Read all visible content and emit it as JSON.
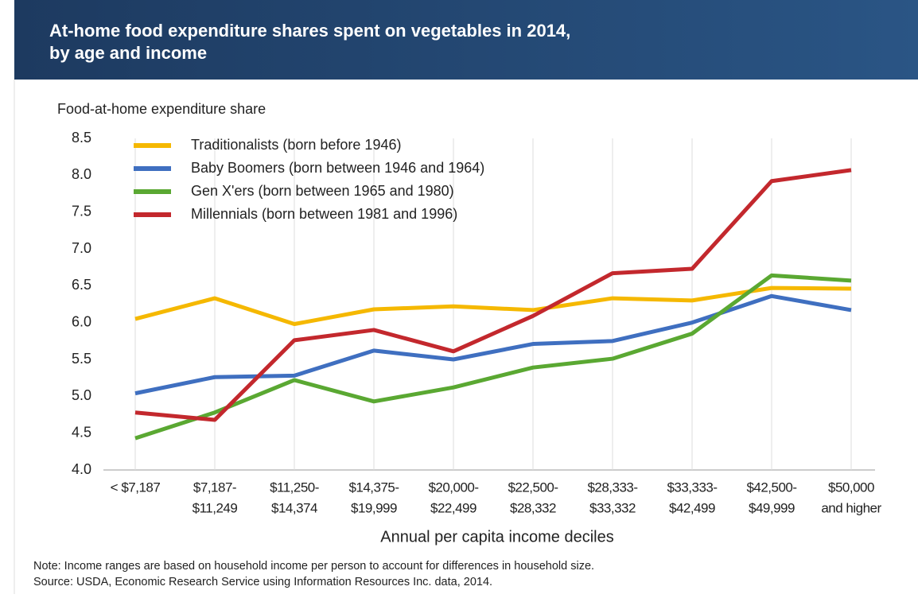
{
  "chart_data": {
    "type": "line",
    "title": [
      "At-home food expenditure shares spent on vegetables in 2014,",
      "by age and income"
    ],
    "y_axis_label": "Food-at-home expenditure share",
    "x_axis_label": "Annual per capita income deciles",
    "notes": [
      "Note: Income ranges are based on household income per person to account for differences in household size.",
      "Source: USDA, Economic Research Service using Information Resources Inc. data, 2014."
    ],
    "categories": [
      [
        "< $7,187"
      ],
      [
        "$7,187-",
        "$11,249"
      ],
      [
        "$11,250-",
        "$14,374"
      ],
      [
        "$14,375-",
        "$19,999"
      ],
      [
        "$20,000-",
        "$22,499"
      ],
      [
        "$22,500-",
        "$28,332"
      ],
      [
        "$28,333-",
        "$33,332"
      ],
      [
        "$33,333-",
        "$42,499"
      ],
      [
        "$42,500-",
        "$49,999"
      ],
      [
        "$50,000",
        "and higher"
      ]
    ],
    "series": [
      {
        "name": "Traditionalists (born before 1946)",
        "color": "#f5b800",
        "values": [
          6.05,
          6.33,
          5.98,
          6.18,
          6.22,
          6.17,
          6.33,
          6.3,
          6.47,
          6.46
        ]
      },
      {
        "name": "Baby Boomers (born between 1946 and 1964)",
        "color": "#3f6fc0",
        "values": [
          5.04,
          5.26,
          5.28,
          5.62,
          5.5,
          5.71,
          5.75,
          6.0,
          6.36,
          6.17
        ]
      },
      {
        "name": "Gen X'ers (born between 1965 and 1980)",
        "color": "#5aa832",
        "values": [
          4.43,
          4.78,
          5.22,
          4.93,
          5.12,
          5.39,
          5.51,
          5.85,
          6.64,
          6.57
        ]
      },
      {
        "name": "Millennials (born between 1981 and 1996)",
        "color": "#c3282d",
        "values": [
          4.78,
          4.68,
          5.76,
          5.9,
          5.61,
          6.09,
          6.67,
          6.73,
          7.92,
          8.07
        ]
      }
    ],
    "ylim": [
      4,
      8.5
    ],
    "yticks": [
      {
        "value": 4,
        "label": "4.0"
      },
      4.5,
      {
        "value": 5,
        "label": "5.0"
      },
      5.5,
      {
        "value": 6,
        "label": "6.0"
      },
      6.5,
      {
        "value": 7,
        "label": "7.0"
      },
      7.5,
      {
        "value": 8,
        "label": "8.0"
      },
      8.5
    ],
    "grid": true,
    "legend": "top-left"
  }
}
